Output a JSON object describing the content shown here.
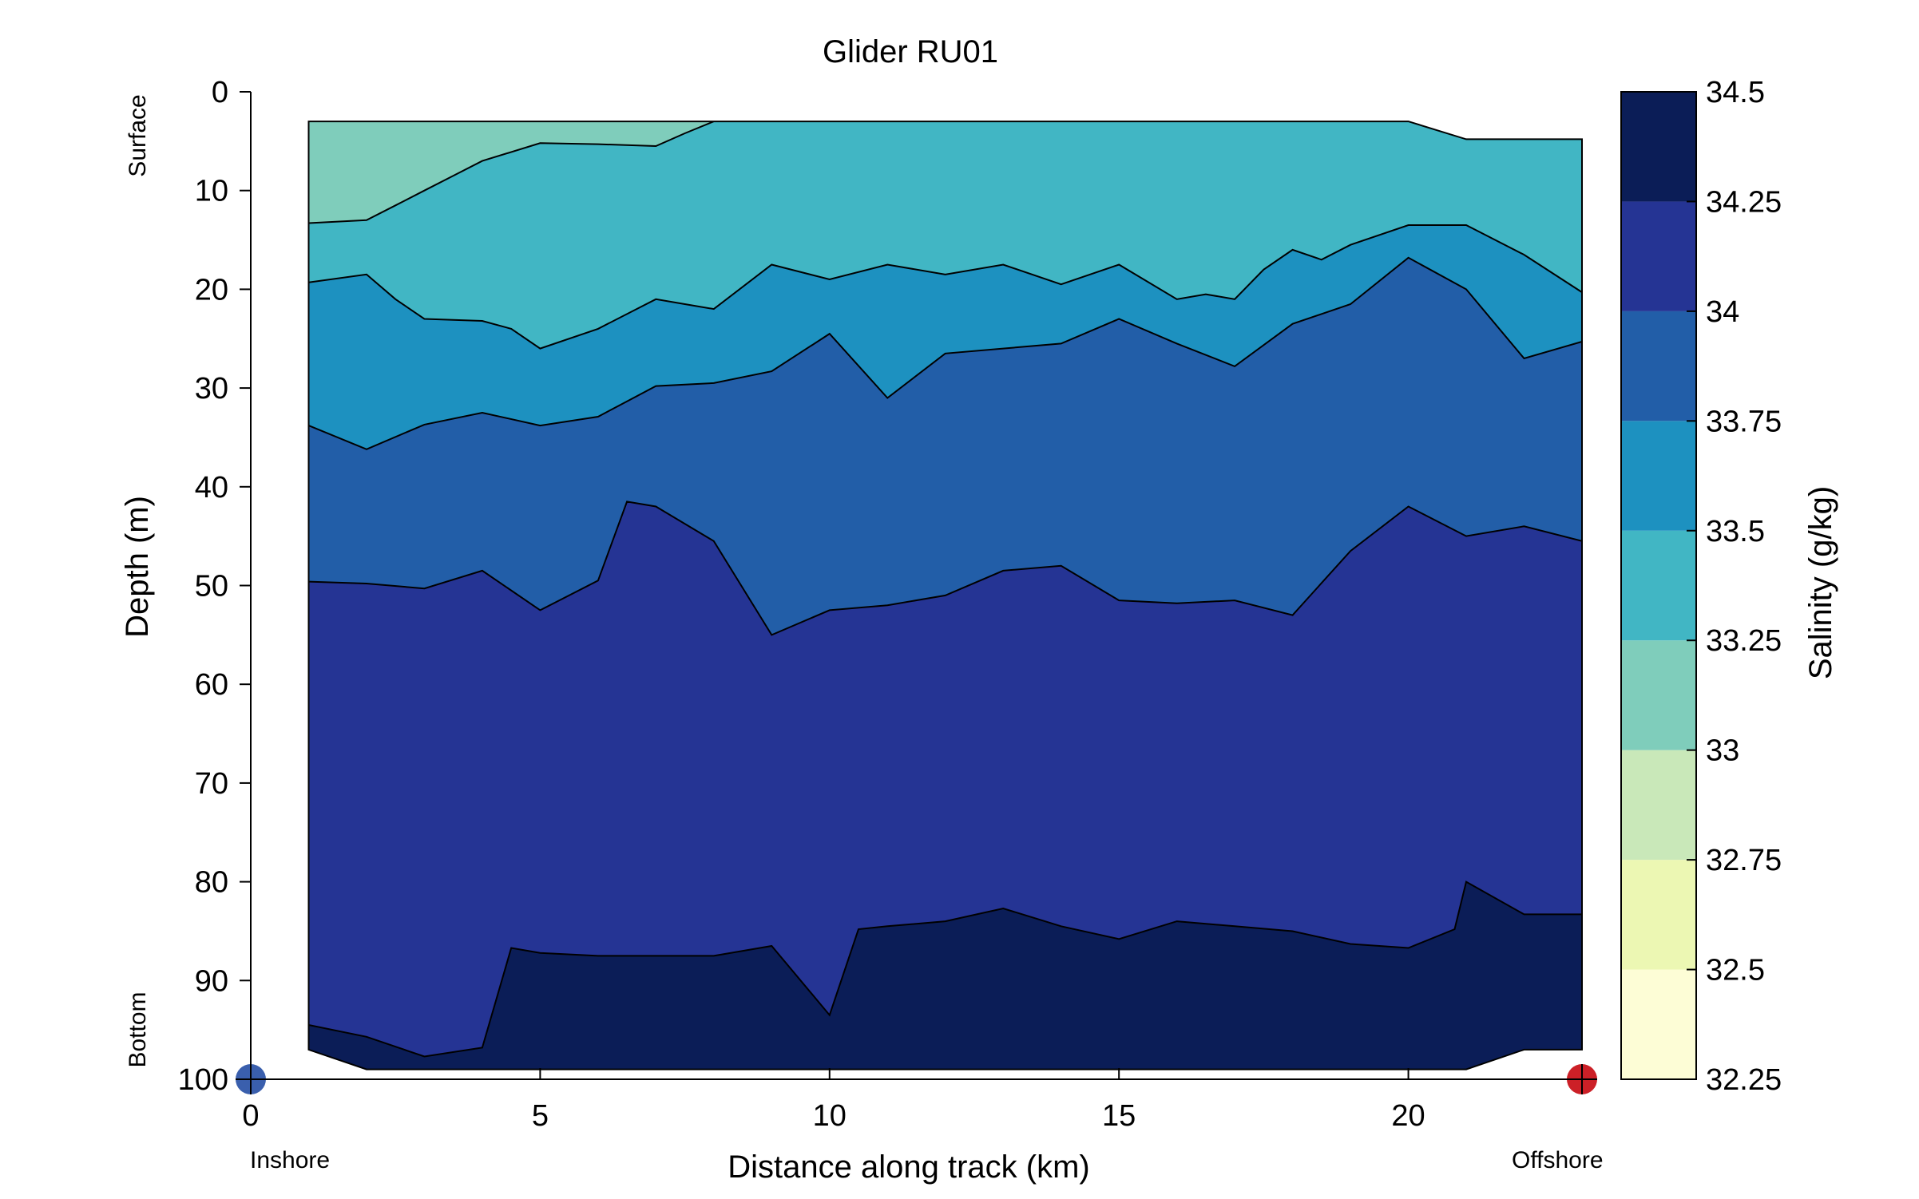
{
  "chart_data": {
    "type": "heatmap",
    "subtype": "filled-contour",
    "title": "Glider RU01",
    "xlabel": "Distance along track (km)",
    "ylabel": "Depth (m)",
    "xlim": [
      0,
      23
    ],
    "ylim": [
      100,
      0
    ],
    "x_ticks": [
      0,
      5,
      10,
      15,
      20
    ],
    "y_ticks": [
      0,
      10,
      20,
      30,
      40,
      50,
      60,
      70,
      80,
      90,
      100
    ],
    "y_side_labels": {
      "top": "Surface",
      "bottom": "Bottom"
    },
    "x_side_labels": {
      "left": "Inshore",
      "right": "Offshore"
    },
    "markers": [
      {
        "name": "Inshore",
        "x": 0,
        "y": 100,
        "color": "#3a5fad"
      },
      {
        "name": "Offshore",
        "x": 23,
        "y": 100,
        "color": "#cc2027"
      }
    ],
    "colorbar": {
      "label": "Salinity (g/kg)",
      "levels": [
        32.25,
        32.5,
        32.75,
        33,
        33.25,
        33.5,
        33.75,
        34,
        34.25,
        34.5
      ],
      "colors": [
        "#fdfdd6",
        "#ecf7b3",
        "#c9e8b9",
        "#7fcdbb",
        "#41b6c4",
        "#1d91c0",
        "#225ea8",
        "#253494",
        "#0b1d57"
      ]
    },
    "data_extent": {
      "top_boundary": [
        [
          1,
          3
        ],
        [
          8,
          3
        ],
        [
          12,
          3
        ],
        [
          20,
          3
        ],
        [
          21,
          4.8
        ],
        [
          23,
          4.8
        ]
      ],
      "bottom_boundary": [
        [
          1,
          97
        ],
        [
          2,
          99
        ],
        [
          21,
          99
        ],
        [
          22,
          97
        ],
        [
          23,
          97
        ]
      ]
    },
    "contour_bands": [
      {
        "band": "33-33.25",
        "lower_boundary": [
          [
            1,
            13.3
          ],
          [
            2,
            13.0
          ],
          [
            2.5,
            11.5
          ],
          [
            3,
            10.0
          ],
          [
            3.5,
            8.5
          ],
          [
            4,
            7.0
          ],
          [
            5,
            5.2
          ],
          [
            6,
            5.3
          ],
          [
            7,
            5.5
          ],
          [
            7.5,
            4.2
          ],
          [
            8,
            3
          ]
        ]
      },
      {
        "band": "33.25-33.5",
        "lower_boundary": [
          [
            1,
            19.3
          ],
          [
            2,
            18.5
          ],
          [
            2.5,
            21.0
          ],
          [
            3,
            23.0
          ],
          [
            4,
            23.2
          ],
          [
            4.5,
            24.0
          ],
          [
            5,
            26.0
          ],
          [
            6,
            24.0
          ],
          [
            7,
            21.0
          ],
          [
            7.5,
            21.5
          ],
          [
            8,
            22.0
          ],
          [
            9,
            17.5
          ],
          [
            10,
            19.0
          ],
          [
            11,
            17.5
          ],
          [
            12,
            18.5
          ],
          [
            13,
            17.5
          ],
          [
            14,
            19.5
          ],
          [
            15,
            17.5
          ],
          [
            16,
            21.0
          ],
          [
            16.5,
            20.5
          ],
          [
            17,
            21.0
          ],
          [
            17.5,
            18.0
          ],
          [
            18,
            16.0
          ],
          [
            18.5,
            17.0
          ],
          [
            19,
            15.5
          ],
          [
            20,
            13.5
          ],
          [
            21,
            13.5
          ],
          [
            22,
            16.5
          ],
          [
            23,
            20.3
          ]
        ]
      },
      {
        "band": "33.5-33.75",
        "lower_boundary": [
          [
            1,
            33.8
          ],
          [
            2,
            36.2
          ],
          [
            3,
            33.7
          ],
          [
            4,
            32.5
          ],
          [
            5,
            33.8
          ],
          [
            6,
            32.9
          ],
          [
            7,
            29.8
          ],
          [
            8,
            29.5
          ],
          [
            9,
            28.3
          ],
          [
            10,
            24.5
          ],
          [
            11,
            31.0
          ],
          [
            12,
            26.5
          ],
          [
            13,
            26.0
          ],
          [
            14,
            25.5
          ],
          [
            15,
            23.0
          ],
          [
            16,
            25.5
          ],
          [
            17,
            27.8
          ],
          [
            18,
            23.5
          ],
          [
            19,
            21.5
          ],
          [
            20,
            16.8
          ],
          [
            21,
            20.0
          ],
          [
            22,
            27.0
          ],
          [
            23,
            25.3
          ]
        ]
      },
      {
        "band": "33.75-34",
        "lower_boundary": [
          [
            1,
            49.6
          ],
          [
            2,
            49.8
          ],
          [
            3,
            50.3
          ],
          [
            4,
            48.5
          ],
          [
            5,
            52.5
          ],
          [
            6,
            49.5
          ],
          [
            6.5,
            41.5
          ],
          [
            7,
            42.0
          ],
          [
            8,
            45.5
          ],
          [
            9,
            55.0
          ],
          [
            10,
            52.5
          ],
          [
            11,
            52.0
          ],
          [
            12,
            51.0
          ],
          [
            13,
            48.5
          ],
          [
            14,
            48.0
          ],
          [
            15,
            51.5
          ],
          [
            16,
            51.8
          ],
          [
            17,
            51.5
          ],
          [
            18,
            53.0
          ],
          [
            19,
            46.5
          ],
          [
            20,
            42.0
          ],
          [
            21,
            45.0
          ],
          [
            22,
            44.0
          ],
          [
            23,
            45.5
          ]
        ]
      },
      {
        "band": "34-34.25",
        "lower_boundary": [
          [
            1,
            94.5
          ],
          [
            2,
            95.7
          ],
          [
            3,
            97.7
          ],
          [
            4,
            96.8
          ],
          [
            4.5,
            86.7
          ],
          [
            5,
            87.2
          ],
          [
            6,
            87.5
          ],
          [
            7,
            87.5
          ],
          [
            8,
            87.5
          ],
          [
            9,
            86.5
          ],
          [
            10,
            93.5
          ],
          [
            10.5,
            84.8
          ],
          [
            11,
            84.5
          ],
          [
            12,
            84.0
          ],
          [
            13,
            82.7
          ],
          [
            14,
            84.5
          ],
          [
            15,
            85.8
          ],
          [
            16,
            84.0
          ],
          [
            17,
            84.5
          ],
          [
            18,
            85.0
          ],
          [
            19,
            86.3
          ],
          [
            20,
            86.7
          ],
          [
            20.8,
            84.8
          ],
          [
            21,
            80.0
          ],
          [
            22,
            83.3
          ],
          [
            23,
            83.3
          ]
        ]
      }
    ]
  }
}
